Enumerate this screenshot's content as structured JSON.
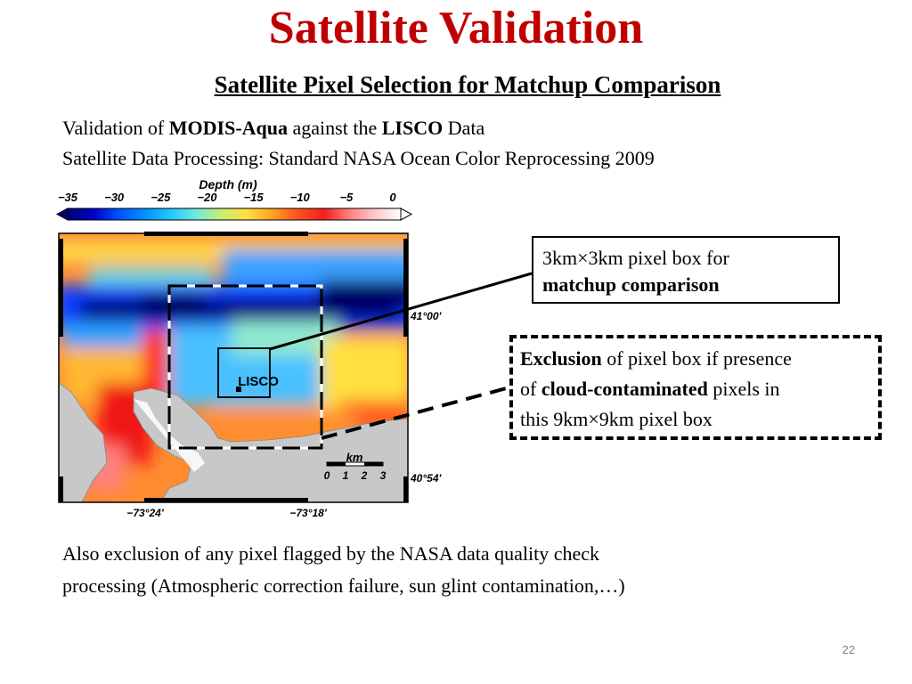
{
  "slide": {
    "title": "Satellite Validation",
    "subtitle": "Satellite Pixel Selection for Matchup Comparison",
    "number": "22",
    "title_color": "#c00000"
  },
  "intro": {
    "line1_prefix": "Validation of ",
    "line1_bold1": "MODIS-Aqua",
    "line1_mid": " against the ",
    "line1_bold2": "LISCO",
    "line1_suffix": " Data",
    "line2": "Satellite Data Processing: Standard NASA Ocean Color Reprocessing 2009"
  },
  "figure": {
    "colorbar_title": "Depth (m)",
    "colorbar_ticks": [
      "−35",
      "−30",
      "−25",
      "−20",
      "−15",
      "−10",
      "−5",
      "0"
    ],
    "colorbar_colors": [
      "#00007a",
      "#0000c8",
      "#0050ff",
      "#0090ff",
      "#20c8ff",
      "#70e8e0",
      "#c8f070",
      "#ffe040",
      "#ffa020",
      "#ff5020",
      "#f02020",
      "#ff8080",
      "#ffc8c8",
      "#ffffff"
    ],
    "site_label": "LISCO",
    "lat_labels": [
      "41°00'",
      "40°54'"
    ],
    "lon_labels": [
      "−73°24'",
      "−73°18'"
    ],
    "scale_unit": "km",
    "scale_ticks": [
      "0",
      "1",
      "2",
      "3"
    ],
    "land_color": "#c8c8c8"
  },
  "callouts": {
    "small_box_line1": "3km×3km pixel box for",
    "small_box_line2": "matchup comparison",
    "large_box_bold1": "Exclusion",
    "large_box_text1": " of pixel box if presence",
    "large_box_text2a": "of ",
    "large_box_bold2": "cloud-contaminated",
    "large_box_text2b": " pixels in",
    "large_box_text3": "this 9km×9km pixel box"
  },
  "outro": {
    "line1": "Also exclusion of any pixel flagged by the NASA data quality check",
    "line2": "processing (Atmospheric correction failure, sun glint contamination,…)"
  }
}
